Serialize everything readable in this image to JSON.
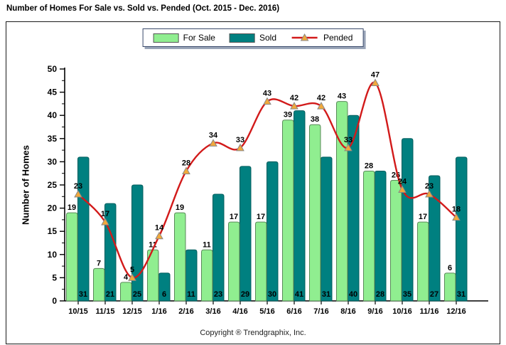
{
  "title": "Number of Homes For Sale vs. Sold vs. Pended (Oct. 2015 - Dec. 2016)",
  "footer": "Copyright ® Trendgraphix, Inc.",
  "legend": {
    "items": [
      {
        "label": "For Sale",
        "color": "#90EE90"
      },
      {
        "label": "Sold",
        "color": "#008080"
      },
      {
        "label": "Pended",
        "color": "#D21A1A"
      }
    ]
  },
  "chart_data": {
    "type": "bar",
    "subtype": "grouped bars with overlay line",
    "title": "Number of Homes For Sale vs. Sold vs. Pended (Oct. 2015 - Dec. 2016)",
    "ylabel": "Number of Homes",
    "xlabel": "",
    "ylim": [
      0,
      50
    ],
    "ytick_step": 5,
    "grid": false,
    "legend_position": "top-center",
    "categories": [
      "10/15",
      "11/15",
      "12/15",
      "1/16",
      "2/16",
      "3/16",
      "4/16",
      "5/16",
      "6/16",
      "7/16",
      "8/16",
      "9/16",
      "10/16",
      "11/16",
      "12/16"
    ],
    "series": [
      {
        "name": "For Sale",
        "type": "bar",
        "color": "#90EE90",
        "border": "#5a8a5a",
        "values": [
          19,
          7,
          4,
          11,
          19,
          11,
          17,
          17,
          39,
          38,
          43,
          28,
          26,
          17,
          6
        ]
      },
      {
        "name": "Sold",
        "type": "bar",
        "color": "#008080",
        "border": "#005c5c",
        "values": [
          31,
          21,
          25,
          6,
          11,
          23,
          29,
          30,
          41,
          31,
          40,
          28,
          35,
          27,
          31
        ]
      },
      {
        "name": "Pended",
        "type": "line",
        "color": "#D21A1A",
        "marker": "triangle",
        "marker_fill": "#F2A93B",
        "marker_border": "#888888",
        "values": [
          23,
          17,
          5,
          14,
          28,
          34,
          33,
          43,
          42,
          42,
          33,
          47,
          24,
          23,
          18
        ]
      }
    ]
  }
}
